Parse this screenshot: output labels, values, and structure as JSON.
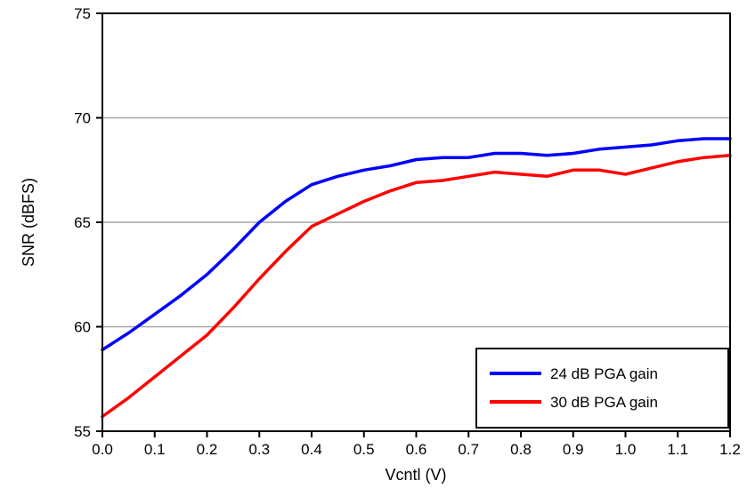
{
  "chart_data": {
    "type": "line",
    "title": "",
    "xlabel": "Vcntl (V)",
    "ylabel": "SNR (dBFS)",
    "xlim": [
      0.0,
      1.2
    ],
    "ylim": [
      55,
      75
    ],
    "xticks": [
      0.0,
      0.1,
      0.2,
      0.3,
      0.4,
      0.5,
      0.6,
      0.7,
      0.8,
      0.9,
      1.0,
      1.1,
      1.2
    ],
    "yticks": [
      55,
      60,
      65,
      70,
      75
    ],
    "grid": "horizontal",
    "legend_position": "lower right",
    "x": [
      0.0,
      0.05,
      0.1,
      0.15,
      0.2,
      0.25,
      0.3,
      0.35,
      0.4,
      0.45,
      0.5,
      0.55,
      0.6,
      0.65,
      0.7,
      0.75,
      0.8,
      0.85,
      0.9,
      0.95,
      1.0,
      1.05,
      1.1,
      1.15,
      1.2
    ],
    "series": [
      {
        "name": "24 dB PGA gain",
        "color": "#0000ff",
        "values": [
          58.9,
          59.7,
          60.6,
          61.5,
          62.5,
          63.7,
          65.0,
          66.0,
          66.8,
          67.2,
          67.5,
          67.7,
          68.0,
          68.1,
          68.1,
          68.3,
          68.3,
          68.2,
          68.3,
          68.5,
          68.6,
          68.7,
          68.9,
          69.0,
          69.0
        ]
      },
      {
        "name": "30 dB PGA gain",
        "color": "#ff0000",
        "values": [
          55.7,
          56.6,
          57.6,
          58.6,
          59.6,
          60.9,
          62.3,
          63.6,
          64.8,
          65.4,
          66.0,
          66.5,
          66.9,
          67.0,
          67.2,
          67.4,
          67.3,
          67.2,
          67.5,
          67.5,
          67.3,
          67.6,
          67.9,
          68.1,
          68.2
        ]
      }
    ]
  },
  "colors": {
    "grid": "#a6a6a6",
    "frame": "#000000",
    "background": "#ffffff"
  }
}
